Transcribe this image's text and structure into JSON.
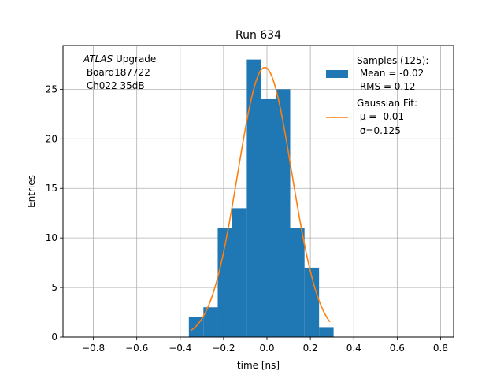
{
  "chart_data": {
    "type": "bar",
    "title": "Run 634",
    "xlabel": "time [ns]",
    "ylabel": "Entries",
    "xlim": [
      -0.94,
      0.86
    ],
    "ylim": [
      0,
      29.4
    ],
    "xticks": [
      -0.8,
      -0.6,
      -0.4,
      -0.2,
      0.0,
      0.2,
      0.4,
      0.6,
      0.8
    ],
    "xtick_labels": [
      "−0.8",
      "−0.6",
      "−0.4",
      "−0.2",
      "0.0",
      "0.2",
      "0.4",
      "0.6",
      "0.8"
    ],
    "yticks": [
      0,
      5,
      10,
      15,
      20,
      25
    ],
    "ytick_labels": [
      "0",
      "5",
      "10",
      "15",
      "20",
      "25"
    ],
    "grid": true,
    "legend_position": "top-right",
    "colors": {
      "histogram": "#1f77b4",
      "fit": "#ff7f0e"
    },
    "histogram": {
      "name": "Samples (125):",
      "stats": [
        " Mean = -0.02",
        " RMS = 0.12"
      ],
      "bin_edges": [
        -0.36,
        -0.293,
        -0.227,
        -0.16,
        -0.093,
        -0.027,
        0.04,
        0.107,
        0.173,
        0.24,
        0.307
      ],
      "counts": [
        2,
        3,
        11,
        13,
        28,
        24,
        25,
        11,
        7,
        1
      ]
    },
    "fit": {
      "name": "Gaussian Fit:",
      "params": [
        " μ = -0.01",
        " σ=0.125"
      ],
      "mu": -0.01,
      "sigma": 0.125,
      "amplitude": 27.2,
      "x_range": [
        -0.35,
        0.29
      ]
    },
    "annotation": {
      "lines": [
        "ATLAS Upgrade",
        " Board187722",
        " Ch022 35dB"
      ]
    }
  }
}
